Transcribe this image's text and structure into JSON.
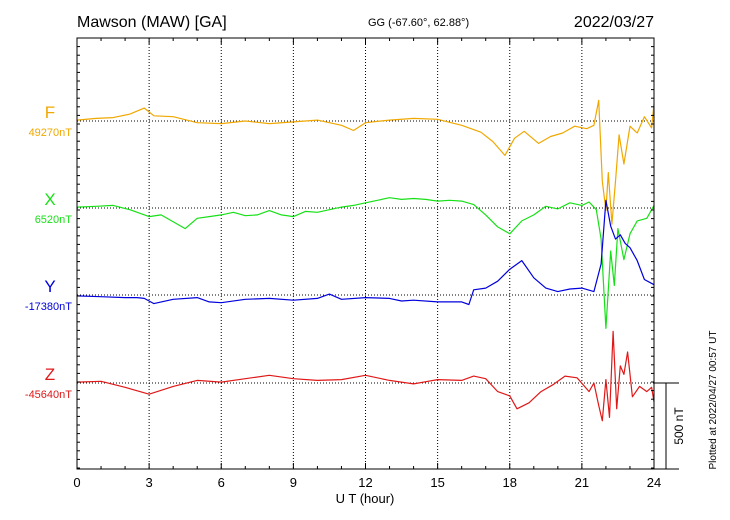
{
  "header": {
    "station": "Mawson (MAW)  [GA]",
    "coords": "GG (-67.60°,  62.88°)",
    "date": "2022/03/27"
  },
  "footer": {
    "plotted": "Plotted at 2022/04/27 00:57 UT"
  },
  "chart_data": {
    "type": "line",
    "xlabel": "U T (hour)",
    "x_ticks": [
      0,
      3,
      6,
      9,
      12,
      15,
      18,
      21,
      24
    ],
    "xlim": [
      0,
      24
    ],
    "scale_bar": "500 nT",
    "grid": true,
    "series": [
      {
        "name": "F",
        "baseline_label": "49270nT",
        "baseline": 49270,
        "color": "#f0a800",
        "points": [
          [
            0,
            5
          ],
          [
            0.8,
            15
          ],
          [
            1.5,
            20
          ],
          [
            2.2,
            40
          ],
          [
            2.8,
            75
          ],
          [
            3.2,
            30
          ],
          [
            4,
            25
          ],
          [
            5,
            -10
          ],
          [
            6,
            -15
          ],
          [
            7,
            0
          ],
          [
            8,
            -15
          ],
          [
            9,
            -5
          ],
          [
            10,
            5
          ],
          [
            11,
            -25
          ],
          [
            11.5,
            -55
          ],
          [
            12,
            -10
          ],
          [
            13,
            5
          ],
          [
            14,
            15
          ],
          [
            15,
            10
          ],
          [
            16,
            -25
          ],
          [
            16.8,
            -65
          ],
          [
            17.3,
            -120
          ],
          [
            17.8,
            -200
          ],
          [
            18.2,
            -100
          ],
          [
            18.6,
            -60
          ],
          [
            19.2,
            -130
          ],
          [
            19.7,
            -90
          ],
          [
            20.2,
            -70
          ],
          [
            20.7,
            -30
          ],
          [
            21.2,
            -45
          ],
          [
            21.5,
            -25
          ],
          [
            21.7,
            120
          ],
          [
            21.85,
            -350
          ],
          [
            22.0,
            -520
          ],
          [
            22.1,
            -300
          ],
          [
            22.25,
            -600
          ],
          [
            22.4,
            -350
          ],
          [
            22.55,
            -80
          ],
          [
            22.75,
            -250
          ],
          [
            23.0,
            -30
          ],
          [
            23.3,
            -70
          ],
          [
            23.6,
            25
          ],
          [
            23.9,
            -40
          ],
          [
            24,
            100
          ]
        ]
      },
      {
        "name": "X",
        "baseline_label": "6520nT",
        "baseline": 6520,
        "color": "#18e018",
        "points": [
          [
            0,
            5
          ],
          [
            0.8,
            10
          ],
          [
            1.5,
            15
          ],
          [
            2.2,
            -10
          ],
          [
            3,
            -50
          ],
          [
            3.5,
            -40
          ],
          [
            4.5,
            -120
          ],
          [
            5,
            -60
          ],
          [
            5.5,
            -50
          ],
          [
            6,
            -40
          ],
          [
            6.5,
            -25
          ],
          [
            7,
            -45
          ],
          [
            7.5,
            -40
          ],
          [
            8,
            -15
          ],
          [
            8.5,
            -40
          ],
          [
            9,
            -50
          ],
          [
            9.5,
            -20
          ],
          [
            10,
            -25
          ],
          [
            10.5,
            -10
          ],
          [
            11,
            5
          ],
          [
            11.5,
            15
          ],
          [
            12,
            30
          ],
          [
            12.5,
            45
          ],
          [
            13,
            60
          ],
          [
            13.5,
            50
          ],
          [
            14,
            55
          ],
          [
            14.5,
            50
          ],
          [
            15,
            40
          ],
          [
            15.5,
            45
          ],
          [
            16,
            40
          ],
          [
            16.5,
            20
          ],
          [
            17,
            -40
          ],
          [
            17.5,
            -110
          ],
          [
            18,
            -150
          ],
          [
            18.5,
            -75
          ],
          [
            19,
            -40
          ],
          [
            19.5,
            10
          ],
          [
            20,
            -5
          ],
          [
            20.5,
            30
          ],
          [
            21,
            15
          ],
          [
            21.3,
            35
          ],
          [
            21.6,
            -10
          ],
          [
            21.8,
            -180
          ],
          [
            22.0,
            -700
          ],
          [
            22.2,
            -250
          ],
          [
            22.35,
            -450
          ],
          [
            22.5,
            -120
          ],
          [
            22.75,
            -300
          ],
          [
            23.0,
            -150
          ],
          [
            23.3,
            -75
          ],
          [
            23.7,
            -60
          ],
          [
            24,
            15
          ]
        ]
      },
      {
        "name": "Y",
        "baseline_label": "-17380nT",
        "baseline": -17380,
        "color": "#0000dd",
        "points": [
          [
            0,
            -5
          ],
          [
            1,
            -10
          ],
          [
            2,
            -15
          ],
          [
            2.5,
            -15
          ],
          [
            2.8,
            -20
          ],
          [
            3.2,
            -50
          ],
          [
            4,
            -25
          ],
          [
            5,
            -15
          ],
          [
            5.5,
            -40
          ],
          [
            6,
            -45
          ],
          [
            7,
            -25
          ],
          [
            8,
            -20
          ],
          [
            9,
            -30
          ],
          [
            10,
            -20
          ],
          [
            10.5,
            5
          ],
          [
            11,
            -25
          ],
          [
            12,
            -15
          ],
          [
            13,
            -20
          ],
          [
            13.5,
            -35
          ],
          [
            14,
            -30
          ],
          [
            15,
            -40
          ],
          [
            16,
            -40
          ],
          [
            16.3,
            -55
          ],
          [
            16.5,
            30
          ],
          [
            17,
            40
          ],
          [
            17.5,
            80
          ],
          [
            18,
            150
          ],
          [
            18.5,
            200
          ],
          [
            19,
            100
          ],
          [
            19.5,
            40
          ],
          [
            20,
            20
          ],
          [
            20.5,
            35
          ],
          [
            21,
            40
          ],
          [
            21.5,
            20
          ],
          [
            21.8,
            180
          ],
          [
            22.0,
            550
          ],
          [
            22.2,
            400
          ],
          [
            22.4,
            325
          ],
          [
            22.6,
            350
          ],
          [
            22.8,
            300
          ],
          [
            23.0,
            275
          ],
          [
            23.3,
            200
          ],
          [
            23.6,
            90
          ],
          [
            24,
            60
          ]
        ]
      },
      {
        "name": "Z",
        "baseline_label": "-45640nT",
        "baseline": -45640,
        "color": "#e01818",
        "points": [
          [
            0,
            5
          ],
          [
            1,
            10
          ],
          [
            2,
            -25
          ],
          [
            3,
            -65
          ],
          [
            4,
            -20
          ],
          [
            5,
            15
          ],
          [
            6,
            5
          ],
          [
            7,
            25
          ],
          [
            8,
            45
          ],
          [
            9,
            25
          ],
          [
            10,
            15
          ],
          [
            11,
            20
          ],
          [
            12,
            45
          ],
          [
            13,
            15
          ],
          [
            14,
            -5
          ],
          [
            15,
            20
          ],
          [
            16,
            15
          ],
          [
            16.5,
            40
          ],
          [
            17,
            25
          ],
          [
            17.5,
            -50
          ],
          [
            18,
            -75
          ],
          [
            18.3,
            -150
          ],
          [
            18.8,
            -115
          ],
          [
            19.3,
            -50
          ],
          [
            19.8,
            -10
          ],
          [
            20.3,
            40
          ],
          [
            20.8,
            30
          ],
          [
            21.3,
            -50
          ],
          [
            21.5,
            0
          ],
          [
            21.7,
            -130
          ],
          [
            21.85,
            -220
          ],
          [
            22.0,
            20
          ],
          [
            22.15,
            -200
          ],
          [
            22.3,
            300
          ],
          [
            22.45,
            -150
          ],
          [
            22.6,
            100
          ],
          [
            22.75,
            50
          ],
          [
            22.9,
            180
          ],
          [
            23.1,
            -80
          ],
          [
            23.4,
            -20
          ],
          [
            23.7,
            -50
          ],
          [
            23.9,
            -25
          ],
          [
            24,
            -110
          ]
        ]
      }
    ]
  }
}
